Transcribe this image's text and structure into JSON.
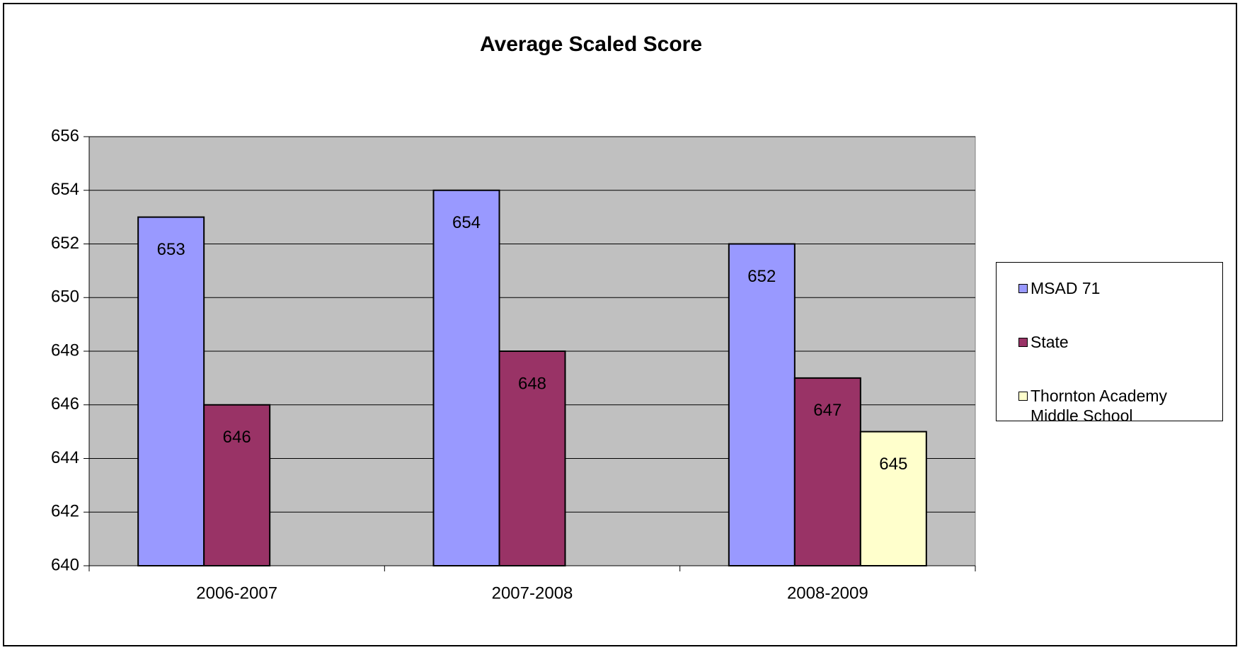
{
  "chart_data": {
    "type": "bar",
    "title": "Average Scaled Score",
    "categories": [
      "2006-2007",
      "2007-2008",
      "2008-2009"
    ],
    "series": [
      {
        "name": "MSAD 71",
        "color": "#9999ff",
        "values": [
          653,
          654,
          652
        ]
      },
      {
        "name": "State",
        "color": "#993366",
        "values": [
          646,
          648,
          647
        ]
      },
      {
        "name": "Thornton Academy Middle School",
        "color": "#ffffcc",
        "values": [
          null,
          null,
          645
        ]
      }
    ],
    "ylim": [
      640,
      656
    ],
    "yticks": [
      640,
      642,
      644,
      646,
      648,
      650,
      652,
      654,
      656
    ],
    "grid": true,
    "legend": "right",
    "plot_background": "#c0c0c0"
  }
}
